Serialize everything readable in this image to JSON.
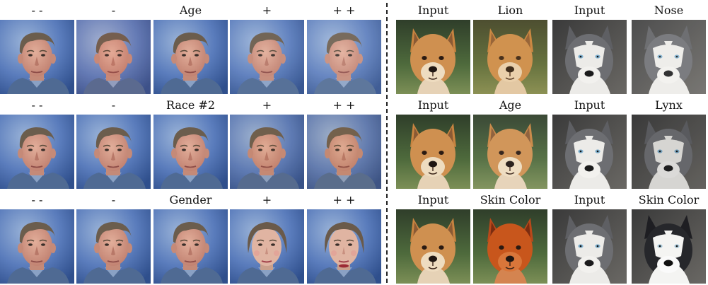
{
  "rows": [
    {
      "left": [
        "- -",
        "-",
        "Age",
        "+",
        "+ +"
      ],
      "right": [
        "Input",
        "Lion",
        "Input",
        "Nose"
      ]
    },
    {
      "left": [
        "- -",
        "-",
        "Race #2",
        "+",
        "+ +"
      ],
      "right": [
        "Input",
        "Age",
        "Input",
        "Lynx"
      ]
    },
    {
      "left": [
        "- -",
        "-",
        "Gender",
        "+",
        "+ +"
      ],
      "right": [
        "Input",
        "Skin Color",
        "Input",
        "Skin Color"
      ]
    }
  ],
  "colors": {
    "portrait_bg": "#3f64a6",
    "portrait_bg_light": "#9bb4d8",
    "skin": "#d59a88",
    "hair": "#6b5d4d",
    "shirt": "#4f6a93",
    "dog_tan": "#cf9050",
    "dog_orange": "#c8561c",
    "husky_gray": "#6d6e72",
    "husky_white": "#ecebe8",
    "grass": "#4e6a3c"
  }
}
